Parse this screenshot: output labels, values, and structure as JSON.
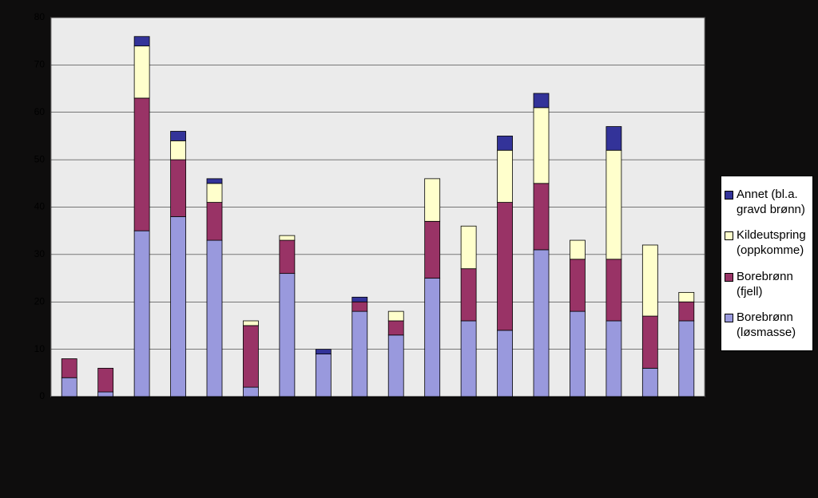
{
  "chart_data": {
    "type": "stacked_bar",
    "categories": [
      null,
      null,
      null,
      null,
      null,
      null,
      null,
      null,
      null,
      null,
      null,
      null,
      null,
      null,
      null,
      null,
      null,
      null
    ],
    "series": [
      {
        "name": "Borebrønn (løsmasse)",
        "color": "#9999dd",
        "values": [
          4,
          1,
          35,
          38,
          33,
          2,
          26,
          9,
          18,
          13,
          25,
          16,
          14,
          31,
          18,
          16,
          6,
          16
        ]
      },
      {
        "name": "Borebrønn (fjell)",
        "color": "#993366",
        "values": [
          4,
          5,
          28,
          12,
          8,
          13,
          7,
          0,
          2,
          3,
          12,
          11,
          27,
          14,
          11,
          13,
          11,
          4
        ]
      },
      {
        "name": "Kildeutspring (oppkomme)",
        "color": "#ffffcc",
        "values": [
          0,
          0,
          11,
          4,
          4,
          1,
          1,
          0,
          0,
          2,
          9,
          9,
          11,
          16,
          4,
          23,
          15,
          2
        ]
      },
      {
        "name": "Annet (bl.a. gravd brønn)",
        "color": "#333399",
        "values": [
          0,
          0,
          2,
          2,
          1,
          0,
          0,
          1,
          1,
          0,
          0,
          0,
          3,
          3,
          0,
          5,
          0,
          0
        ]
      }
    ],
    "ylim": [
      0,
      80
    ],
    "yticks": [
      0,
      10,
      20,
      30,
      40,
      50,
      60,
      70,
      80
    ],
    "grid": true,
    "legend": "right"
  }
}
